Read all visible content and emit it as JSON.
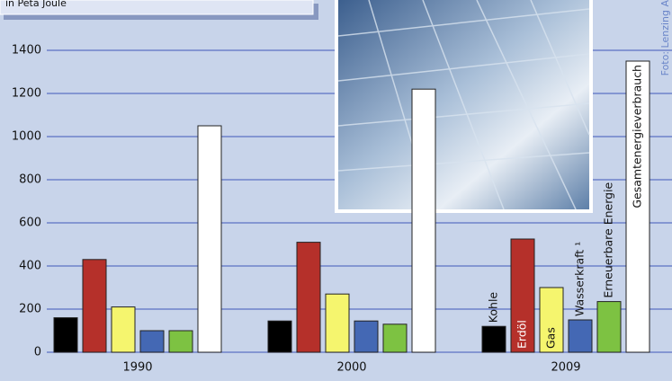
{
  "chart_data": {
    "type": "bar",
    "subtitle": "in Peta Joule",
    "credit": "Foto: Lenzing AG",
    "categories": [
      "1990",
      "2000",
      "2009"
    ],
    "series": [
      {
        "name": "Kohle",
        "color": "#000000",
        "values": [
          160,
          145,
          120
        ]
      },
      {
        "name": "Erdöl",
        "color": "#b5302a",
        "values": [
          430,
          510,
          525
        ]
      },
      {
        "name": "Gas",
        "color": "#f5f56e",
        "values": [
          210,
          270,
          300
        ]
      },
      {
        "name": "Wasserkraft ¹",
        "color": "#4468b4",
        "values": [
          100,
          145,
          150
        ]
      },
      {
        "name": "Erneuerbare Energie",
        "color": "#7dc242",
        "values": [
          100,
          130,
          235
        ]
      },
      {
        "name": "Gesamtenergieverbrauch",
        "color": "#ffffff",
        "values": [
          1050,
          1220,
          1350
        ]
      }
    ],
    "ylim": [
      0,
      1400
    ],
    "yticks": [
      0,
      200,
      400,
      600,
      800,
      1000,
      1200,
      1400
    ],
    "grid": true
  }
}
